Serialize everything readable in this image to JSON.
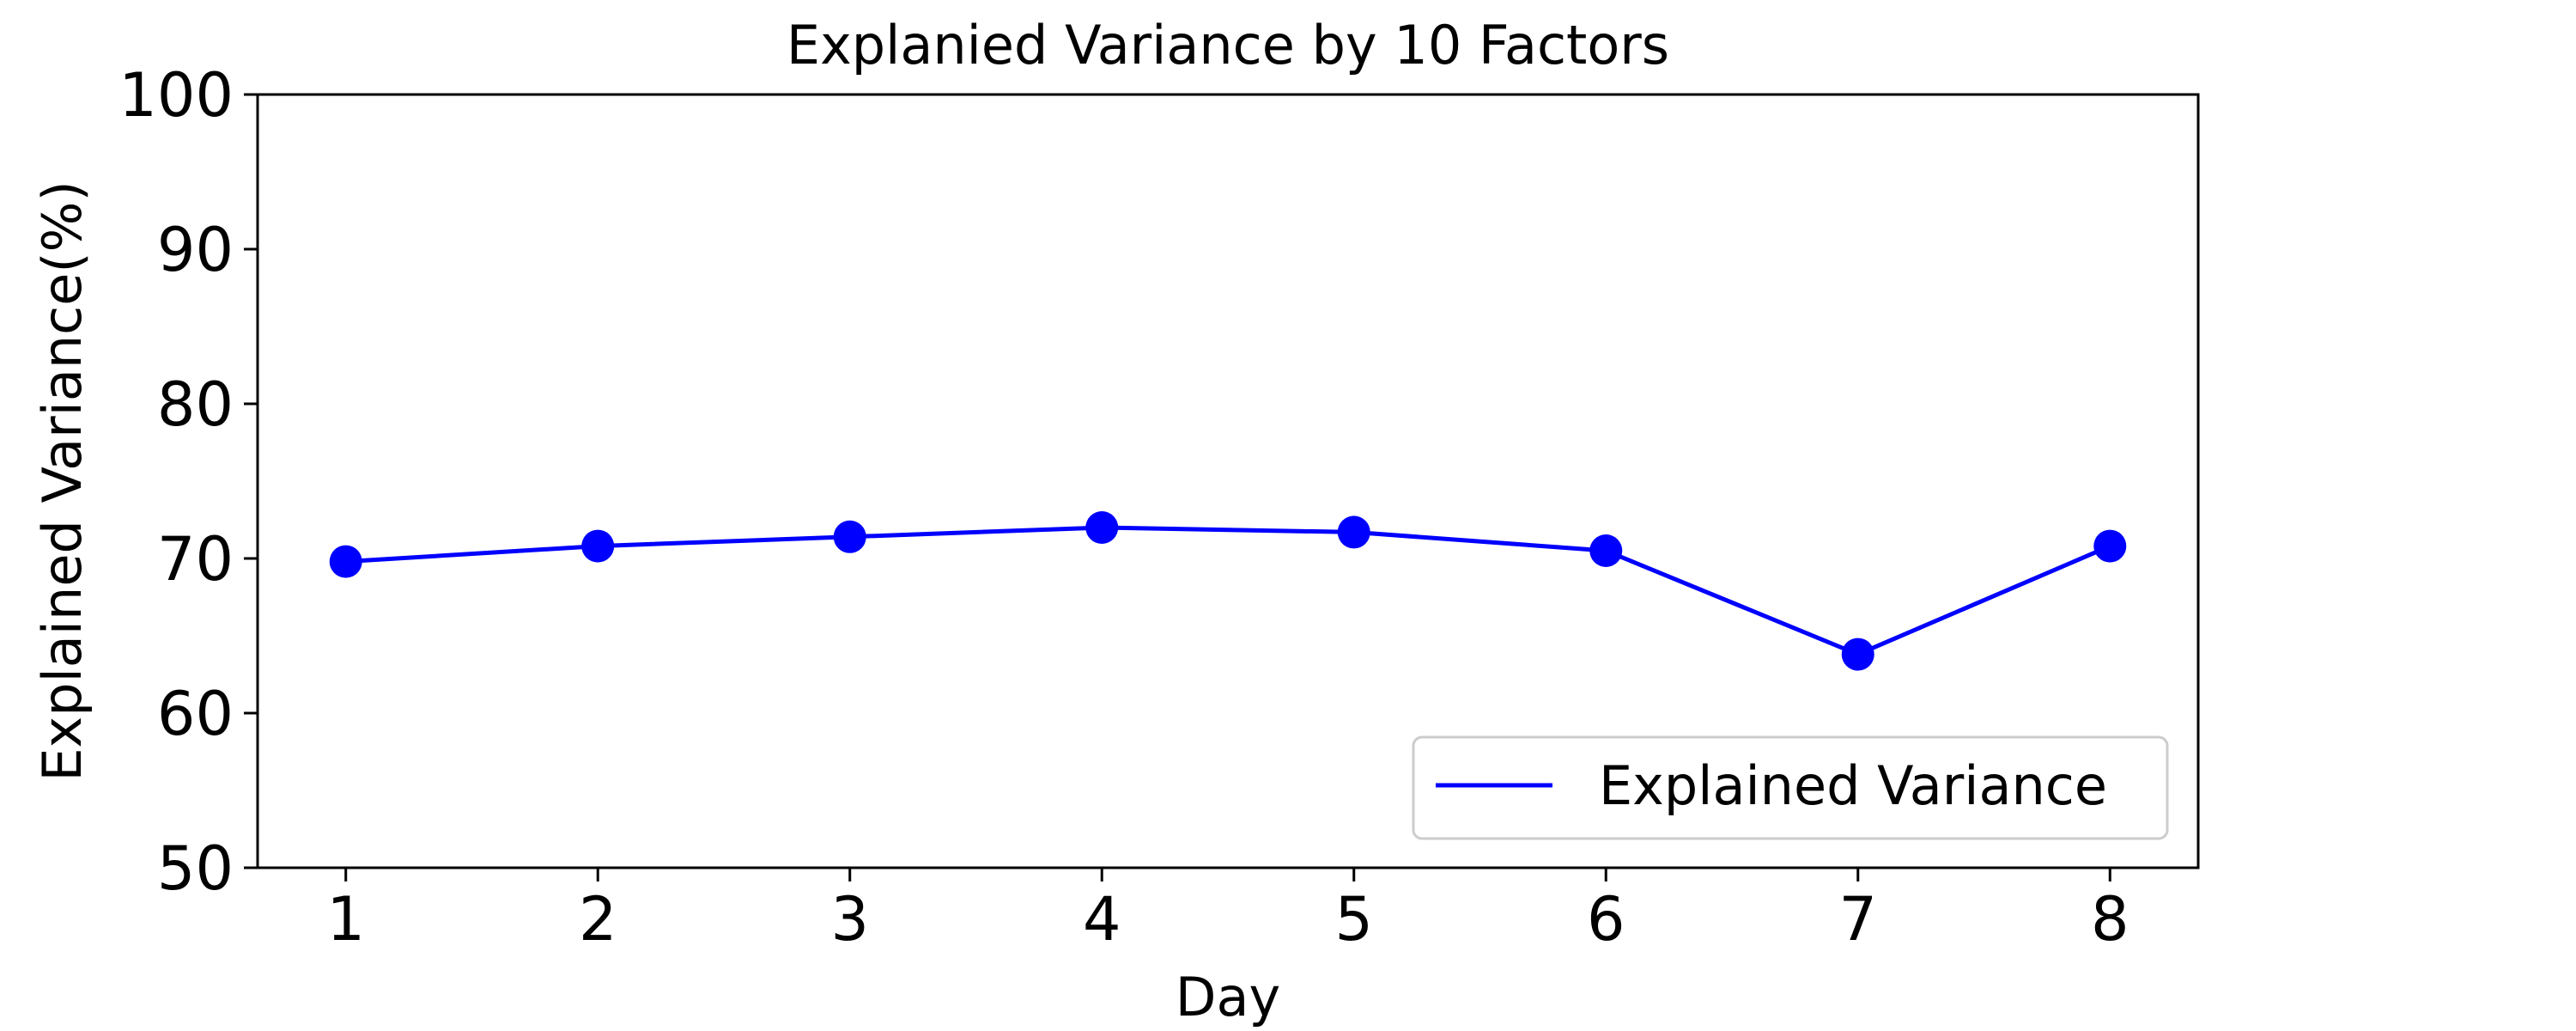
{
  "chart_data": {
    "type": "line",
    "title": "Explanied Variance by 10 Factors",
    "xlabel": "Day",
    "ylabel": "Explained Variance(%)",
    "x": [
      1,
      2,
      3,
      4,
      5,
      6,
      7,
      8
    ],
    "xlim": [
      0.65,
      8.35
    ],
    "ylim": [
      50,
      100
    ],
    "yticks": [
      50,
      60,
      70,
      80,
      90,
      100
    ],
    "grid": false,
    "legend_position": "lower-right",
    "series": [
      {
        "name": "Explained Variance",
        "color": "#0000ff",
        "marker": "circle",
        "values": [
          69.8,
          70.8,
          71.4,
          72.0,
          71.7,
          70.5,
          63.8,
          70.8
        ]
      }
    ]
  }
}
